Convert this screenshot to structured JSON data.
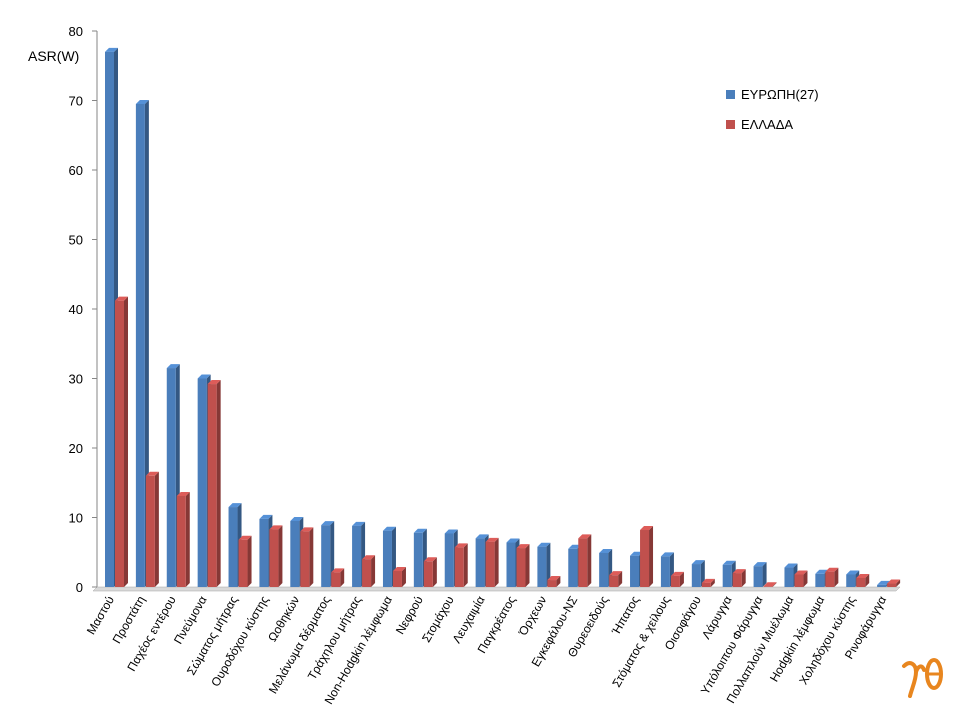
{
  "chart_data": {
    "type": "bar",
    "ylabel": "ASR(W)",
    "ylim": [
      0,
      80
    ],
    "yticks": [
      0,
      10,
      20,
      30,
      40,
      50,
      60,
      70,
      80
    ],
    "legend_position": "top-right",
    "categories": [
      "Μαστού",
      "Προστάτη",
      "Παχέος εντέρου",
      "Πνεύμονα",
      "Σώματος μήτρας",
      "Ουροδόχου κύστης",
      "Ωοθηκών",
      "Μελάνωμα δέρματος",
      "Τράχηλου μήτρας",
      "Non-Hodgkin λέμφωμα",
      "Νεφρού",
      "Στομάχου",
      "Λευχαιμία",
      "Παγκρέατος",
      "Όρχεων",
      "Εγκεφάλου-ΝΣ",
      "Θυρεοειδούς",
      "Ήπατος",
      "Στόματος & χείλους",
      "Οισοφάγου",
      "Λάρυγγα",
      "Υπόλοιπου Φάρυγγα",
      "Πολλαπλούν Μυέλωμα",
      "Hodgkin λέμφωμα",
      "Χοληδόχου κύστης",
      "Ρινοφάρυγγα"
    ],
    "series": [
      {
        "name": "ΕΥΡΩΠΗ(27)",
        "color": "#4a7ebb",
        "values": [
          77.0,
          69.5,
          31.5,
          30.0,
          11.5,
          9.8,
          9.5,
          8.9,
          8.8,
          8.1,
          7.8,
          7.7,
          7.0,
          6.4,
          5.8,
          5.5,
          4.9,
          4.5,
          4.4,
          3.3,
          3.2,
          3.0,
          2.8,
          1.9,
          1.8,
          0.3
        ]
      },
      {
        "name": "ΕΛΛΑΔΑ",
        "color": "#c0504d",
        "values": [
          41.2,
          16.0,
          13.1,
          29.2,
          6.8,
          8.3,
          8.0,
          2.1,
          4.0,
          2.3,
          3.7,
          5.7,
          6.5,
          5.6,
          1.0,
          7.0,
          1.7,
          8.2,
          1.6,
          0.6,
          2.0,
          0.1,
          1.8,
          2.2,
          1.3,
          0.5
        ]
      }
    ]
  },
  "logo": {
    "icon": "gamma-theta-logo",
    "color": "#e8861f"
  }
}
